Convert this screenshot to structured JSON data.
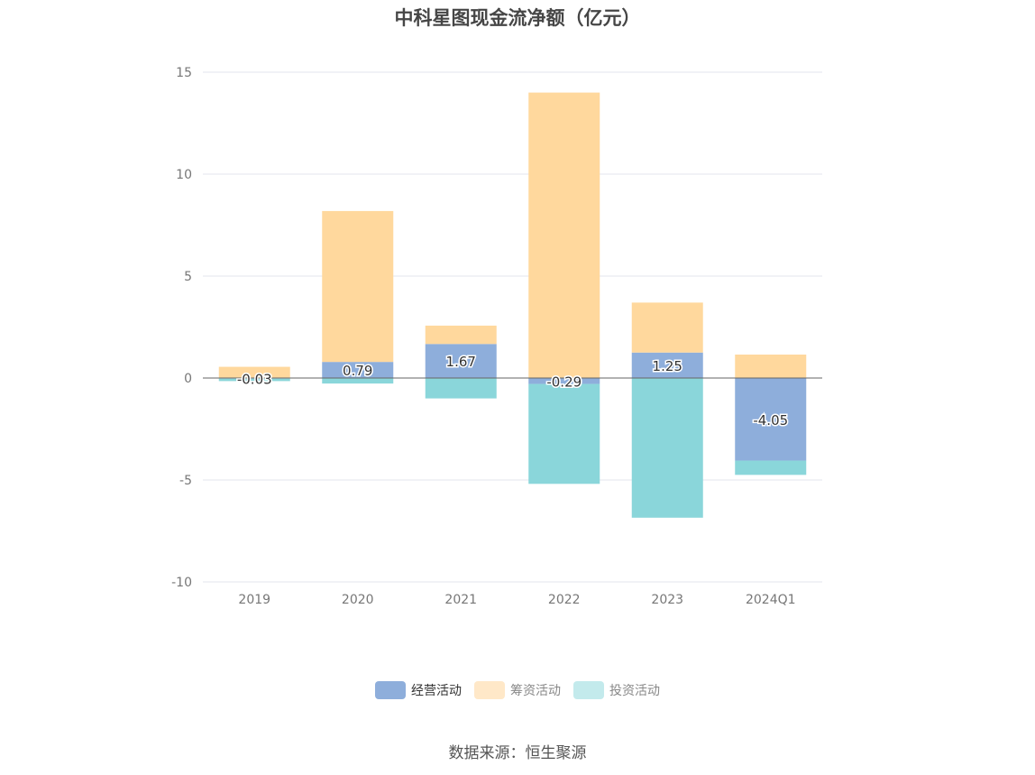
{
  "chart_data": {
    "type": "bar",
    "stacked": true,
    "title": "中科星图现金流净额（亿元）",
    "categories": [
      "2019",
      "2020",
      "2021",
      "2022",
      "2023",
      "2024Q1"
    ],
    "series": [
      {
        "name": "经营活动",
        "color": "#8eaedb",
        "values": [
          -0.03,
          0.79,
          1.67,
          -0.29,
          1.25,
          -4.05
        ],
        "labels": [
          "-0.03",
          "0.79",
          "1.67",
          "-0.29",
          "1.25",
          "-4.05"
        ]
      },
      {
        "name": "筹资活动",
        "color": "#ffd89d",
        "values": [
          0.55,
          7.4,
          0.9,
          14.0,
          2.45,
          1.15
        ]
      },
      {
        "name": "投资活动",
        "color": "#8ad6da",
        "values": [
          -0.12,
          -0.27,
          -1.0,
          -4.9,
          -6.85,
          -0.7
        ]
      }
    ],
    "ylim": [
      -10,
      15
    ],
    "yticks": [
      -10,
      -5,
      0,
      5,
      10,
      15
    ],
    "grid": true,
    "legend_position": "bottom",
    "legend_swatch_colors": [
      "#8eaedb",
      "#ffe8c8",
      "#c3eaec"
    ]
  },
  "source_note": "数据来源：恒生聚源"
}
